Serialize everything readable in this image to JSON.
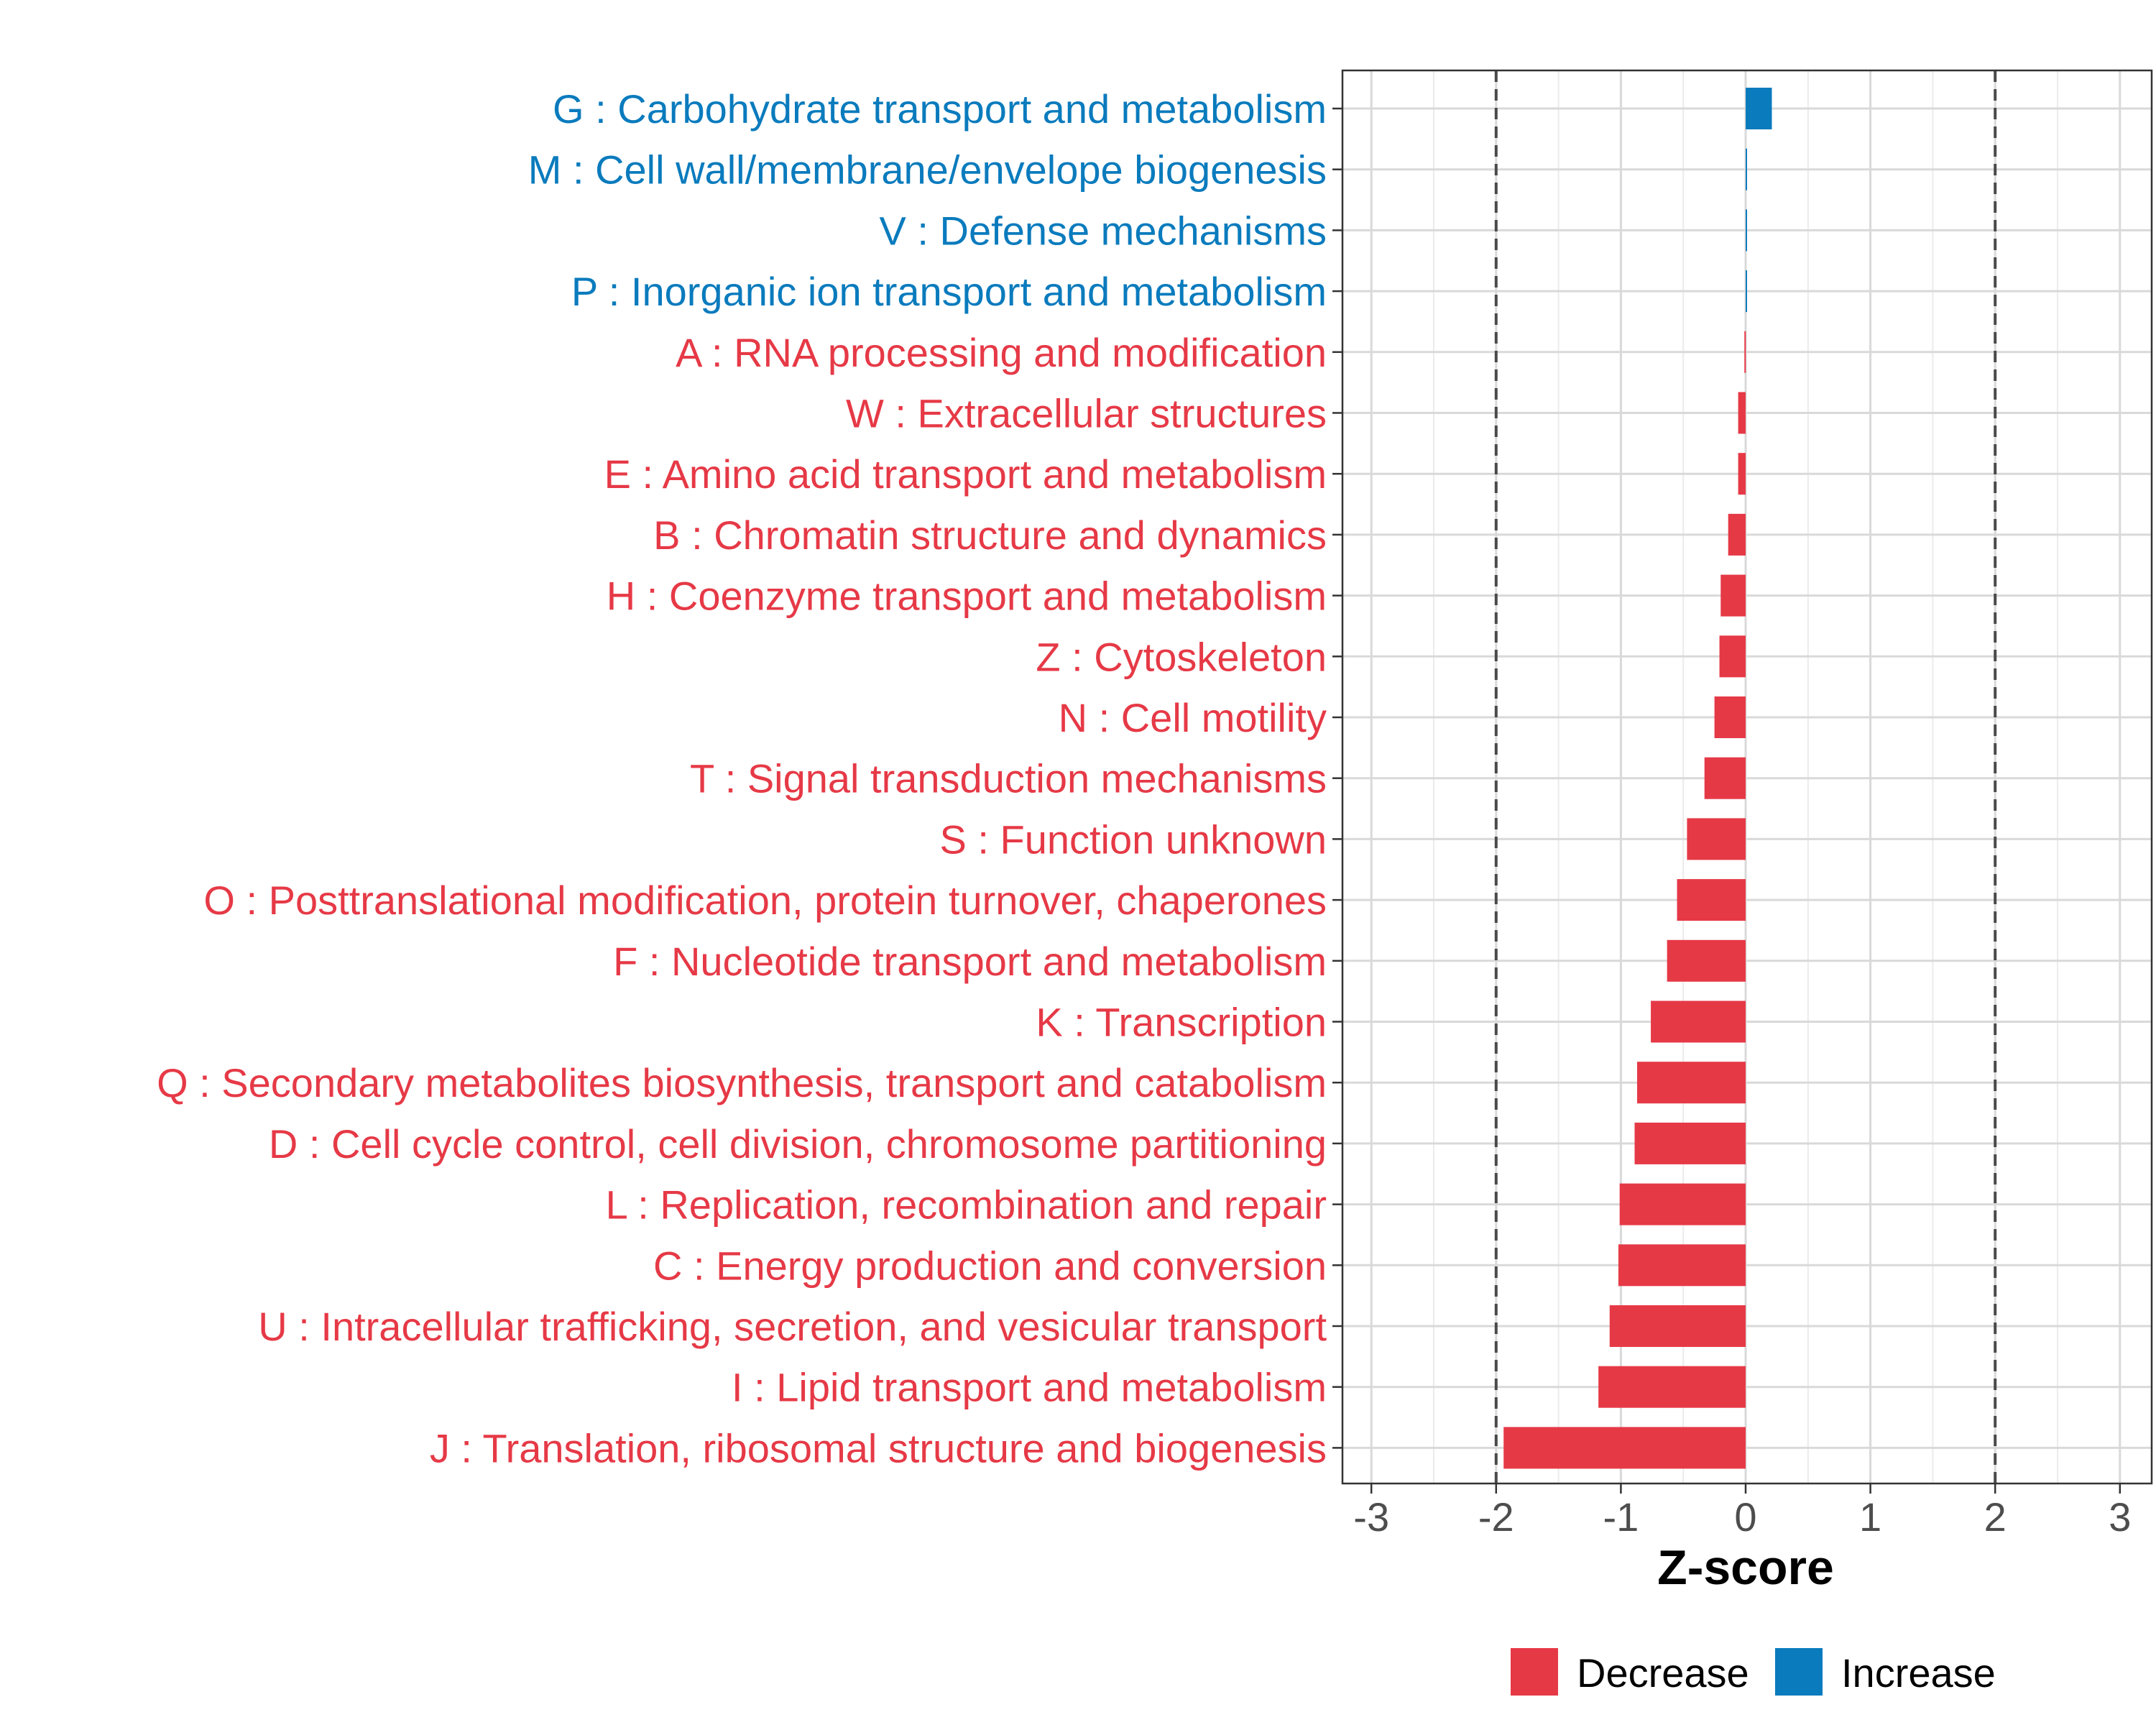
{
  "chart_data": {
    "type": "bar",
    "orientation": "horizontal",
    "title": "",
    "xlabel": "Z-score",
    "ylabel": "",
    "xlim": [
      -3.2,
      3.2
    ],
    "xticks": [
      -3,
      -2,
      -1,
      0,
      1,
      2,
      3
    ],
    "xtick_labels": [
      "-3",
      "-2",
      "-1",
      "0",
      "1",
      "2",
      "3"
    ],
    "reference_lines": [
      -2,
      2
    ],
    "grid": true,
    "legend_position": "bottom",
    "colors": {
      "Decrease": "#e63946",
      "Increase": "#0a7bbd"
    },
    "categories": [
      "G : Carbohydrate transport and metabolism",
      "M : Cell wall/membrane/envelope biogenesis",
      "V : Defense mechanisms",
      "P : Inorganic ion transport and metabolism",
      "A : RNA processing and modification",
      "W : Extracellular structures",
      "E : Amino acid transport and metabolism",
      "B : Chromatin structure and dynamics",
      "H : Coenzyme transport and metabolism",
      "Z : Cytoskeleton",
      "N : Cell motility",
      "T : Signal transduction mechanisms",
      "S : Function unknown",
      "O : Posttranslational modification, protein turnover, chaperones",
      "F : Nucleotide transport and metabolism",
      "K : Transcription",
      "Q : Secondary metabolites biosynthesis, transport and catabolism",
      "D : Cell cycle control, cell division, chromosome partitioning",
      "L : Replication, recombination and repair",
      "C : Energy production and conversion",
      "U : Intracellular trafficking, secretion, and vesicular transport",
      "I : Lipid transport and metabolism",
      "J : Translation, ribosomal structure and biogenesis"
    ],
    "values": [
      0.21,
      0.01,
      0.005,
      0.0,
      -0.01,
      -0.06,
      -0.06,
      -0.14,
      -0.2,
      -0.21,
      -0.25,
      -0.33,
      -0.47,
      -0.55,
      -0.63,
      -0.76,
      -0.87,
      -0.89,
      -1.01,
      -1.02,
      -1.09,
      -1.18,
      -1.94
    ],
    "groups": [
      "Increase",
      "Increase",
      "Increase",
      "Increase",
      "Decrease",
      "Decrease",
      "Decrease",
      "Decrease",
      "Decrease",
      "Decrease",
      "Decrease",
      "Decrease",
      "Decrease",
      "Decrease",
      "Decrease",
      "Decrease",
      "Decrease",
      "Decrease",
      "Decrease",
      "Decrease",
      "Decrease",
      "Decrease",
      "Decrease"
    ],
    "legend": [
      "Decrease",
      "Increase"
    ]
  }
}
